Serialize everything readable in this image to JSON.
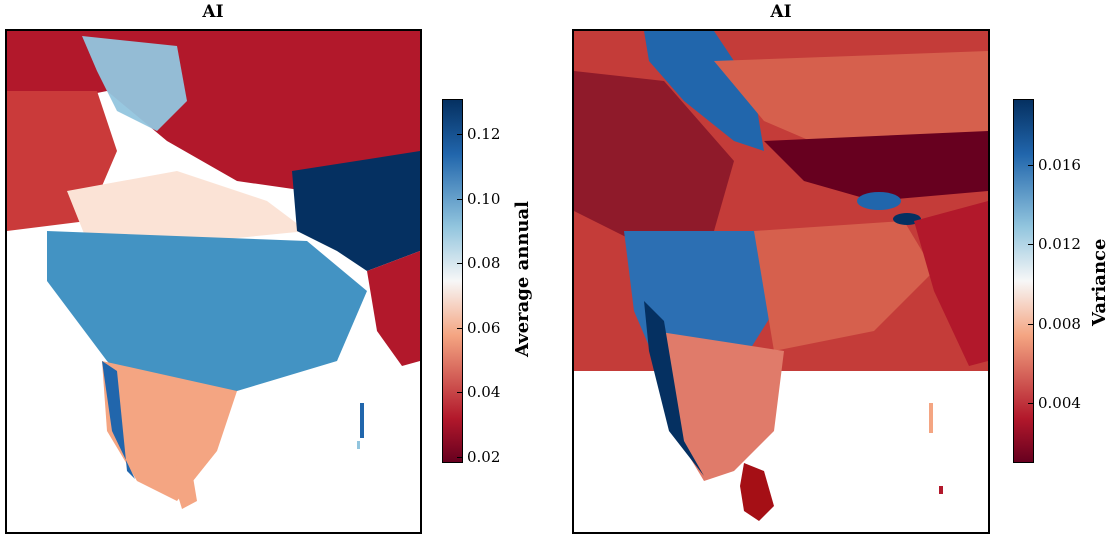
{
  "panels": [
    {
      "title": "AI",
      "colorbar": {
        "label": "Average annual",
        "ticks": [
          "0.12",
          "0.10",
          "0.08",
          "0.06",
          "0.04",
          "0.02"
        ],
        "range": [
          0.018,
          0.131
        ],
        "colormap": "RdBu",
        "colors": {
          "low": "#67001f",
          "mid": "#f7f7f7",
          "high": "#053061"
        }
      }
    },
    {
      "title": "AI",
      "colorbar": {
        "label": "Variance",
        "ticks": [
          "0.016",
          "0.012",
          "0.008",
          "0.004"
        ],
        "range": [
          0.001,
          0.0193
        ],
        "colormap": "RdBu",
        "colors": {
          "low": "#67001f",
          "mid": "#f7f7f7",
          "high": "#053061"
        }
      }
    }
  ]
}
